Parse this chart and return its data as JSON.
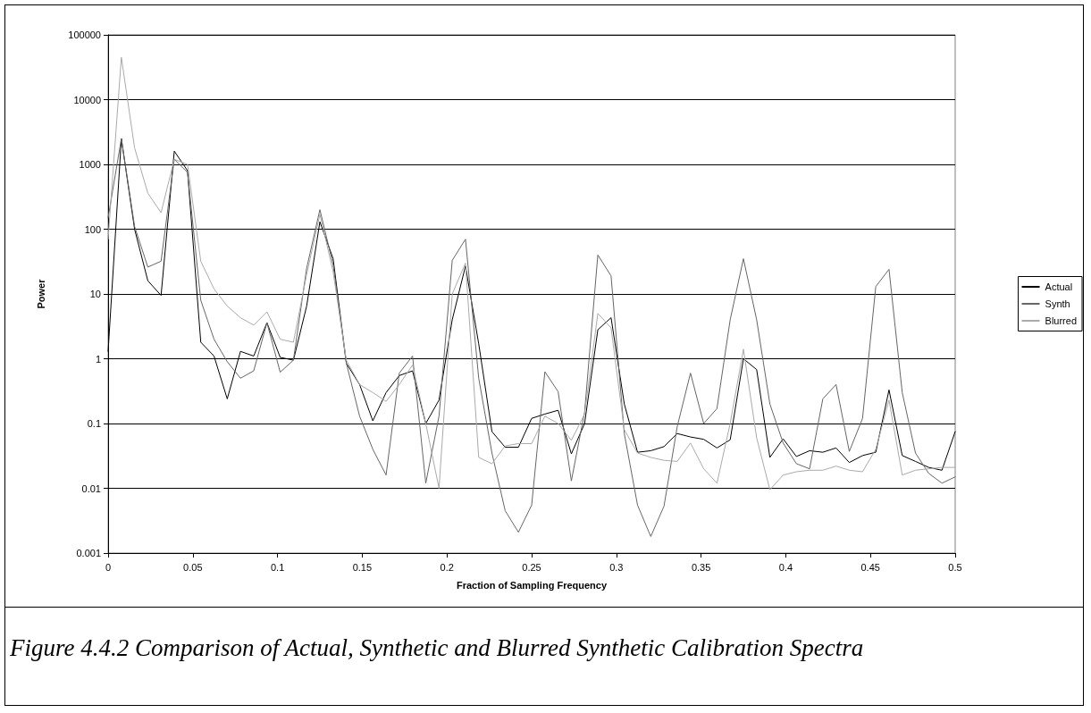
{
  "chart_data": {
    "type": "line",
    "xlabel": "Fraction of Sampling Frequency",
    "ylabel": "Power",
    "annotations": [
      "Figure 4.4.2 Comparison of Actual, Synthetic and Blurred Synthetic Calibration Spectra"
    ],
    "x": [
      0,
      0.0078125,
      0.015625,
      0.0234375,
      0.03125,
      0.0390625,
      0.046875,
      0.0546875,
      0.0625,
      0.0703125,
      0.078125,
      0.0859375,
      0.09375,
      0.1015625,
      0.109375,
      0.1171875,
      0.125,
      0.1328125,
      0.140625,
      0.1484375,
      0.15625,
      0.1640625,
      0.171875,
      0.1796875,
      0.1875,
      0.1953125,
      0.203125,
      0.2109375,
      0.21875,
      0.2265625,
      0.234375,
      0.2421875,
      0.25,
      0.2578125,
      0.265625,
      0.2734375,
      0.28125,
      0.2890625,
      0.296875,
      0.3046875,
      0.3125,
      0.3203125,
      0.328125,
      0.3359375,
      0.34375,
      0.3515625,
      0.359375,
      0.3671875,
      0.375,
      0.3828125,
      0.390625,
      0.3984375,
      0.40625,
      0.4140625,
      0.421875,
      0.4296875,
      0.4375,
      0.4453125,
      0.453125,
      0.4609375,
      0.46875,
      0.4765625,
      0.484375,
      0.4921875,
      0.5
    ],
    "series": [
      {
        "name": "Actual",
        "color": "#000000",
        "values": [
          1.3,
          2500,
          100,
          16,
          9.5,
          1600,
          800,
          1.8,
          1.1,
          0.24,
          1.3,
          1.1,
          3.6,
          1.05,
          0.95,
          6.5,
          130,
          35,
          0.85,
          0.4,
          0.11,
          0.3,
          0.55,
          0.65,
          0.1,
          0.23,
          4,
          27,
          1.7,
          0.075,
          0.043,
          0.043,
          0.12,
          0.14,
          0.16,
          0.034,
          0.1,
          2.8,
          4.3,
          0.2,
          0.036,
          0.038,
          0.044,
          0.07,
          0.062,
          0.057,
          0.042,
          0.056,
          1.0,
          0.68,
          0.03,
          0.058,
          0.031,
          0.038,
          0.036,
          0.042,
          0.025,
          0.032,
          0.036,
          0.33,
          0.032,
          0.026,
          0.021,
          0.019,
          0.075
        ]
      },
      {
        "name": "Synth",
        "color": "#666666",
        "values": [
          150,
          2500,
          110,
          26,
          32,
          1200,
          750,
          8,
          2,
          0.9,
          0.5,
          0.65,
          3.6,
          0.62,
          0.95,
          25,
          200,
          28,
          0.85,
          0.13,
          0.04,
          0.016,
          0.6,
          1.1,
          0.012,
          0.13,
          33,
          70,
          0.5,
          0.035,
          0.0045,
          0.0021,
          0.0055,
          0.63,
          0.31,
          0.013,
          0.15,
          40,
          19,
          0.07,
          0.0055,
          0.0018,
          0.0053,
          0.09,
          0.6,
          0.1,
          0.17,
          4,
          35,
          4,
          0.2,
          0.05,
          0.024,
          0.02,
          0.24,
          0.4,
          0.037,
          0.12,
          13,
          24,
          0.3,
          0.035,
          0.017,
          0.012,
          0.015
        ]
      },
      {
        "name": "Blurred",
        "color": "#aaaaaa",
        "values": [
          70,
          45000,
          1800,
          360,
          180,
          1200,
          1000,
          32,
          12,
          6.5,
          4.3,
          3.3,
          5.3,
          2,
          1.8,
          20,
          170,
          22,
          0.95,
          0.4,
          0.3,
          0.22,
          0.4,
          0.8,
          0.1,
          0.01,
          10,
          30,
          0.03,
          0.024,
          0.045,
          0.049,
          0.049,
          0.13,
          0.1,
          0.055,
          0.14,
          5,
          3,
          0.08,
          0.035,
          0.03,
          0.027,
          0.026,
          0.05,
          0.02,
          0.012,
          0.1,
          1.4,
          0.06,
          0.0095,
          0.016,
          0.018,
          0.019,
          0.019,
          0.022,
          0.019,
          0.018,
          0.04,
          0.23,
          0.016,
          0.019,
          0.02,
          0.021,
          0.021
        ]
      }
    ],
    "xlim": [
      0,
      0.5
    ],
    "xticks": [
      0,
      0.05,
      0.1,
      0.15,
      0.2,
      0.25,
      0.3,
      0.35,
      0.4,
      0.45,
      0.5
    ],
    "ylim": [
      0.001,
      100000
    ],
    "yticks": [
      0.001,
      0.01,
      0.1,
      1,
      10,
      100,
      1000,
      10000,
      100000
    ],
    "log": "y",
    "grid": "y",
    "legend": "right",
    "marker": "none",
    "line_style": "solid"
  }
}
